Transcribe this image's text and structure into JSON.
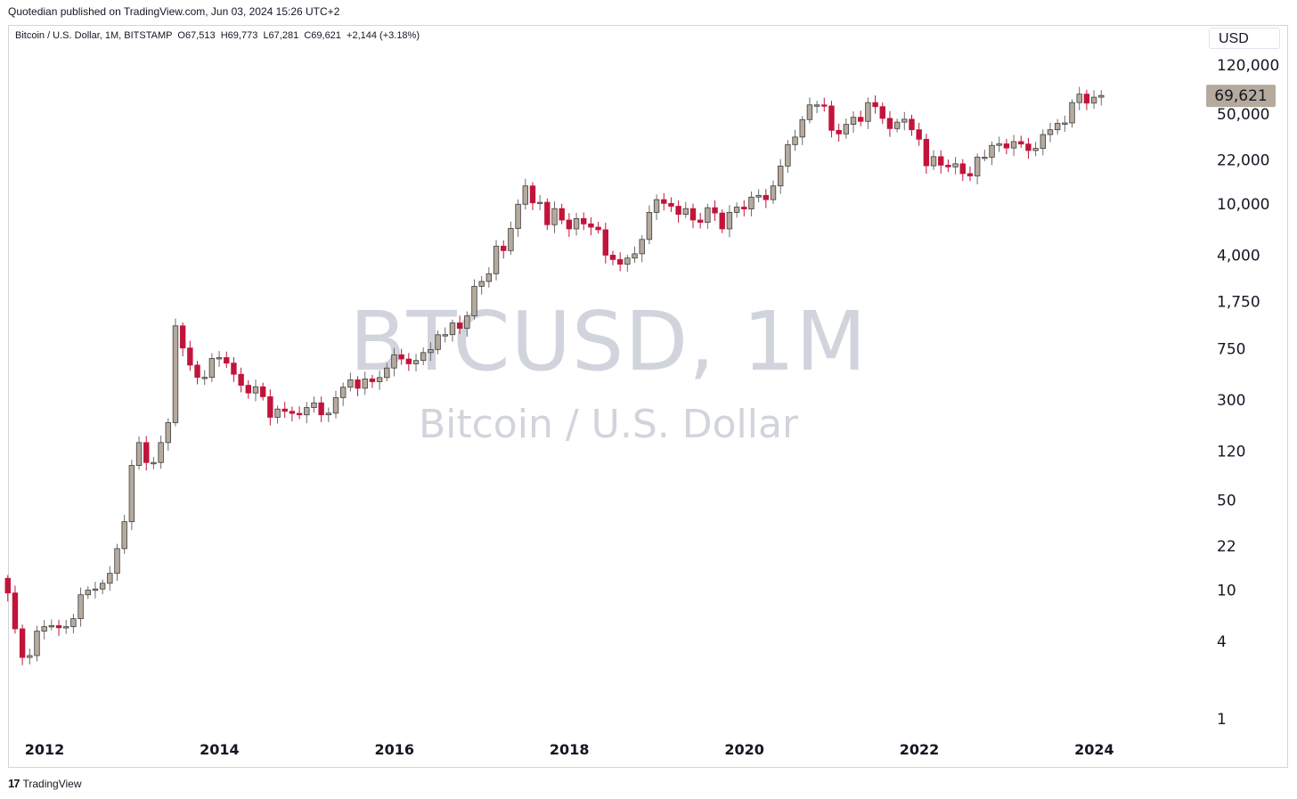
{
  "header": {
    "published": "Quotedian published on TradingView.com, Jun 03, 2024 15:26 UTC+2"
  },
  "legend": {
    "symbol": "Bitcoin / U.S. Dollar, 1M, BITSTAMP",
    "open": "O67,513",
    "high": "H69,773",
    "low": "L67,281",
    "close": "C69,621",
    "change": "+2,144 (+3.18%)"
  },
  "currency": "USD",
  "watermark": {
    "ticker": "BTCUSD, 1M",
    "name": "Bitcoin / U.S. Dollar"
  },
  "footer": {
    "logo": "17",
    "brand": "TradingView"
  },
  "colors": {
    "up_fill": "#b5aa9d",
    "down_fill": "#c2143b",
    "price_badge": "#b5aa9d",
    "axis_text": "#131722",
    "watermark": "#d1d4dc"
  },
  "chart_data": {
    "type": "candlestick",
    "y_scale": "log",
    "grid": false,
    "ylim": [
      1,
      120000
    ],
    "x_range": [
      2011.58,
      2024.5
    ],
    "last_price_label": "69,621",
    "last_price": 69621,
    "y_ticks": [
      {
        "label": "120,000",
        "value": 120000
      },
      {
        "label": "50,000",
        "value": 50000
      },
      {
        "label": "22,000",
        "value": 22000
      },
      {
        "label": "10,000",
        "value": 10000
      },
      {
        "label": "4,000",
        "value": 4000
      },
      {
        "label": "1,750",
        "value": 1750
      },
      {
        "label": "750",
        "value": 750
      },
      {
        "label": "300",
        "value": 300
      },
      {
        "label": "120",
        "value": 120
      },
      {
        "label": "50",
        "value": 50
      },
      {
        "label": "22",
        "value": 22
      },
      {
        "label": "10",
        "value": 10
      },
      {
        "label": "4",
        "value": 4
      },
      {
        "label": "1",
        "value": 1
      }
    ],
    "x_ticks": [
      {
        "label": "2012",
        "value": 2012
      },
      {
        "label": "2014",
        "value": 2014
      },
      {
        "label": "2016",
        "value": 2016
      },
      {
        "label": "2018",
        "value": 2018
      },
      {
        "label": "2020",
        "value": 2020
      },
      {
        "label": "2022",
        "value": 2022
      },
      {
        "label": "2024",
        "value": 2024
      }
    ],
    "series": [
      {
        "name": "BTCUSD",
        "monthly_close_approx": [
          9.5,
          5.0,
          3.0,
          3.1,
          4.8,
          5.2,
          5.3,
          5.1,
          5.2,
          6.0,
          9.2,
          10.0,
          10.2,
          11.3,
          13.5,
          21.0,
          34.0,
          93.0,
          140.0,
          98.0,
          98.0,
          140.0,
          200.0,
          1130.0,
          760.0,
          560.0,
          450.0,
          450.0,
          630.0,
          640.0,
          580.0,
          475.0,
          390.0,
          340.0,
          380.0,
          318.0,
          220.0,
          255.0,
          245.0,
          236.0,
          230.0,
          262.0,
          285.0,
          230.0,
          237.0,
          313.0,
          377.0,
          430.0,
          370.0,
          437.0,
          416.0,
          448.0,
          531.0,
          673.0,
          624.0,
          573.0,
          608.0,
          700.0,
          740.0,
          963.0,
          965.0,
          1190.0,
          1080.0,
          1350.0,
          2290.0,
          2500.0,
          2870.0,
          4700.0,
          4340.0,
          6450.0,
          9950.0,
          13800.0,
          10200.0,
          10300.0,
          6900.0,
          9200.0,
          7500.0,
          6400.0,
          7700.0,
          7000.0,
          6600.0,
          6300.0,
          4000.0,
          3700.0,
          3400.0,
          3800.0,
          4100.0,
          5300.0,
          8600.0,
          10800.0,
          10100.0,
          9600.0,
          8300.0,
          9200.0,
          7500.0,
          7200.0,
          9350.0,
          8500.0,
          6400.0,
          8600.0,
          9450.0,
          9140.0,
          11300.0,
          11650.0,
          10800.0,
          13800.0,
          19700.0,
          28900.0,
          33100.0,
          45200.0,
          58800.0,
          58800.0,
          57700.0,
          37300.0,
          35000.0,
          41500.0,
          47100.0,
          43800.0,
          61300.0,
          57000.0,
          46200.0,
          38500.0,
          43200.0,
          45500.0,
          37700.0,
          31800.0,
          19800.0,
          23300.0,
          20000.0,
          19400.0,
          20500.0,
          17200.0,
          16500.0,
          23100.0,
          23100.0,
          28500.0,
          29300.0,
          27200.0,
          30500.0,
          29200.0,
          26000.0,
          27000.0,
          34600.0,
          37700.0,
          42300.0,
          42600.0,
          61300.0,
          71300.0,
          60700.0,
          67500.0,
          69621.0
        ]
      }
    ],
    "xlabel": "",
    "ylabel": ""
  }
}
